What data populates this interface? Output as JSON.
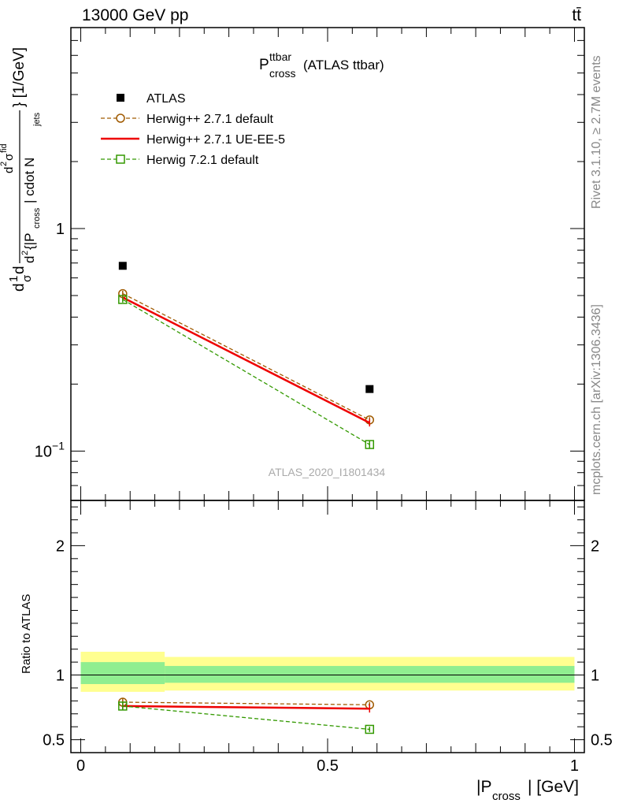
{
  "header": {
    "energy_label": "13000 GeV pp",
    "process_label": "tt̄",
    "rivet_label": "Rivet 3.1.10, ≥ 2.7M events",
    "mcplots_label": "mcplots.cern.ch [arXiv:1306.3436]"
  },
  "chart_data": [
    {
      "type": "line",
      "panel": "main",
      "title": {
        "main": "P",
        "sup": "ttbar",
        "sub": "cross",
        "suffix": "(ATLAS ttbar)"
      },
      "ylabel": "d²σ / d{|Pcross| cdot Njets} [1/GeV]",
      "ylabel_parts": {
        "d1": "d",
        "one": "1",
        "sigma": "σ",
        "d2": "d",
        "num_d2": "d",
        "num_sup": "2",
        "num_sigma": "σ",
        "num_sup2": "fid",
        "den_d": "d",
        "den_sup": "2",
        "den_open": "{|P",
        "den_sub": "cross",
        "den_rest": "| cdot N",
        "den_sub2": "jets",
        "close": "} [1/GeV]"
      },
      "yscale": "log",
      "ylim": [
        0.06,
        8.0
      ],
      "xlim": [
        -0.02,
        1.02
      ],
      "yticks": [
        {
          "value": 1,
          "label": "1"
        },
        {
          "value": 0.1,
          "label": "10",
          "sup": "−1"
        }
      ],
      "watermark": "ATLAS_2020_I1801434",
      "legend_position": "top-left",
      "x": [
        0.085,
        0.585
      ],
      "series": [
        {
          "name": "ATLAS",
          "style": "data",
          "color": "#000000",
          "values": [
            0.68,
            0.19
          ]
        },
        {
          "name": "Herwig++ 2.7.1 default",
          "style": "dashed-circle",
          "color": "#a05a00",
          "values": [
            0.51,
            0.138
          ],
          "errors": [
            0.015,
            0.004
          ]
        },
        {
          "name": "Herwig++ 2.7.1 UE-EE-5",
          "style": "solid",
          "color": "#ee0000",
          "values": [
            0.49,
            0.134
          ],
          "errors": [
            0.015,
            0.005
          ]
        },
        {
          "name": "Herwig 7.2.1 default",
          "style": "dashed-square",
          "color": "#339900",
          "values": [
            0.48,
            0.107
          ],
          "errors": [
            0.015,
            0.004
          ]
        }
      ]
    },
    {
      "type": "line",
      "panel": "ratio",
      "ylabel": "Ratio to ATLAS",
      "xlabel": "|Pcross| [GeV]",
      "xlabel_parts": {
        "main": "|P",
        "sub": "cross",
        "rest": "| [GeV]"
      },
      "ylim": [
        0.4,
        2.35
      ],
      "xlim": [
        -0.02,
        1.02
      ],
      "yticks": [
        {
          "value": 0.5,
          "label": "0.5"
        },
        {
          "value": 1,
          "label": "1"
        },
        {
          "value": 2,
          "label": "2"
        }
      ],
      "xticks": [
        {
          "value": 0,
          "label": "0"
        },
        {
          "value": 0.5,
          "label": "0.5"
        },
        {
          "value": 1,
          "label": "1"
        }
      ],
      "bands": [
        {
          "x0": 0.0,
          "x1": 0.17,
          "inner": [
            0.93,
            1.1
          ],
          "outer": [
            0.87,
            1.18
          ]
        },
        {
          "x0": 0.17,
          "x1": 1.0,
          "inner": [
            0.94,
            1.07
          ],
          "outer": [
            0.88,
            1.14
          ]
        }
      ],
      "band_colors": {
        "inner": "#90ee90",
        "outer": "#ffff90"
      },
      "x": [
        0.085,
        0.585
      ],
      "series": [
        {
          "name": "Herwig++ 2.7.1 default",
          "style": "dashed-circle",
          "color": "#a05a00",
          "values": [
            0.79,
            0.77
          ],
          "errors": [
            0.03,
            0.02
          ]
        },
        {
          "name": "Herwig++ 2.7.1 UE-EE-5",
          "style": "solid",
          "color": "#ee0000",
          "values": [
            0.76,
            0.74
          ],
          "errors": [
            0.03,
            0.03
          ]
        },
        {
          "name": "Herwig 7.2.1 default",
          "style": "dashed-square",
          "color": "#339900",
          "values": [
            0.76,
            0.58
          ],
          "errors": [
            0.03,
            0.02
          ]
        }
      ]
    }
  ]
}
